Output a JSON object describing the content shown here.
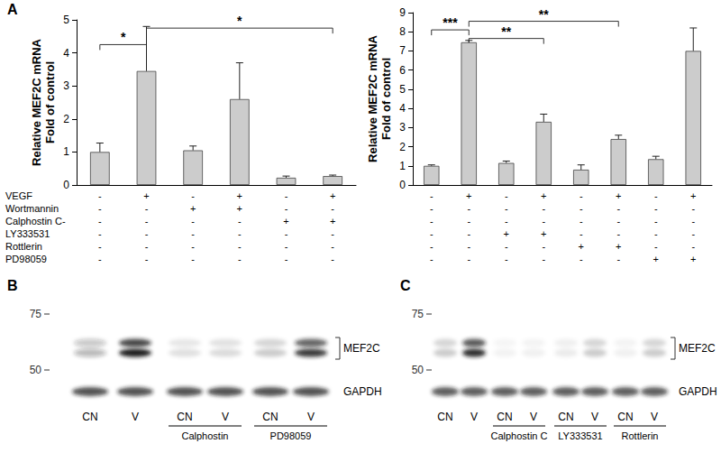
{
  "chart_data": [
    {
      "type": "bar",
      "ylabel": "Relative MEF2C mRNA\nFold of control",
      "categories": [
        null,
        null,
        null,
        null,
        null,
        null
      ],
      "values": [
        1.0,
        3.45,
        1.05,
        2.6,
        0.22,
        0.27
      ],
      "errors": [
        0.27,
        1.35,
        0.13,
        1.1,
        0.05,
        0.03
      ],
      "color": "#cccccc",
      "ylim": [
        0,
        5
      ],
      "yticks": [
        0,
        1,
        2,
        3,
        4,
        5
      ],
      "grid": false,
      "treatment_signs": [
        [
          "-",
          "+",
          "-",
          "+",
          "-",
          "+"
        ],
        [
          "-",
          "-",
          "+",
          "+",
          "-",
          "-"
        ],
        [
          "-",
          "-",
          "-",
          "-",
          "+",
          "+"
        ],
        [
          "-",
          "-",
          "-",
          "-",
          "-",
          "-"
        ],
        [
          "-",
          "-",
          "-",
          "-",
          "-",
          "-"
        ],
        [
          "-",
          "-",
          "-",
          "-",
          "-",
          "-"
        ]
      ],
      "annotations": [
        {
          "from": 0,
          "to": 1,
          "label": "*"
        },
        {
          "from": 1,
          "to": 5,
          "label": "*"
        }
      ]
    },
    {
      "type": "bar",
      "ylabel": "Relative MEF2C mRNA\nFold of control",
      "categories": [
        null,
        null,
        null,
        null,
        null,
        null,
        null,
        null
      ],
      "values": [
        1.0,
        7.45,
        1.15,
        3.3,
        0.8,
        2.4,
        1.35,
        7.0
      ],
      "errors": [
        0.05,
        0.1,
        0.1,
        0.4,
        0.25,
        0.2,
        0.15,
        1.2
      ],
      "color": "#cccccc",
      "ylim": [
        0,
        9
      ],
      "yticks": [
        0,
        1,
        2,
        3,
        4,
        5,
        6,
        7,
        8,
        9
      ],
      "grid": false,
      "treatment_signs": [
        [
          "-",
          "+",
          "-",
          "+",
          "-",
          "+",
          "-",
          "+"
        ],
        [
          "-",
          "-",
          "-",
          "-",
          "-",
          "-",
          "-",
          "-"
        ],
        [
          "-",
          "-",
          "-",
          "-",
          "-",
          "-",
          "-",
          "-"
        ],
        [
          "-",
          "-",
          "+",
          "+",
          "-",
          "-",
          "-",
          "-"
        ],
        [
          "-",
          "-",
          "-",
          "-",
          "+",
          "+",
          "-",
          "-"
        ],
        [
          "-",
          "-",
          "-",
          "-",
          "-",
          "-",
          "+",
          "+"
        ]
      ],
      "annotations": [
        {
          "from": 1,
          "to": 3,
          "label": "**"
        },
        {
          "from": 0,
          "to": 1,
          "label": "***"
        },
        {
          "from": 1,
          "to": 5,
          "label": "**"
        }
      ]
    }
  ],
  "treatment_rows": [
    "VEGF",
    "Wortmannin",
    "Calphostin C-",
    "LY333531",
    "Rottlerin",
    "PD98059"
  ],
  "panels": [
    "A",
    "B",
    "C"
  ],
  "blots": [
    {
      "markers": [
        75,
        50
      ],
      "lanes": [
        "CN",
        "V",
        "CN",
        "V",
        "CN",
        "V"
      ],
      "groups": [
        {
          "label": "Calphostin",
          "lanes": [
            2,
            3
          ]
        },
        {
          "label": "PD98059",
          "lanes": [
            4,
            5
          ]
        }
      ],
      "bands": [
        {
          "label": "MEF2C",
          "intensity": [
            0.3,
            1.0,
            0.12,
            0.14,
            0.2,
            0.85
          ]
        },
        {
          "label": "GAPDH",
          "intensity": [
            0.75,
            0.75,
            0.75,
            0.75,
            0.75,
            0.75
          ]
        }
      ]
    },
    {
      "markers": [
        75,
        50
      ],
      "lanes": [
        "CN",
        "V",
        "CN",
        "V",
        "CN",
        "V",
        "CN",
        "V"
      ],
      "groups": [
        {
          "label": "Calphostin C",
          "lanes": [
            2,
            3
          ]
        },
        {
          "label": "LY333531",
          "lanes": [
            4,
            5
          ]
        },
        {
          "label": "Rottlerin",
          "lanes": [
            6,
            7
          ]
        }
      ],
      "bands": [
        {
          "label": "MEF2C",
          "intensity": [
            0.2,
            0.9,
            0.05,
            0.06,
            0.08,
            0.2,
            0.06,
            0.2
          ]
        },
        {
          "label": "GAPDH",
          "intensity": [
            0.7,
            0.7,
            0.7,
            0.7,
            0.7,
            0.7,
            0.7,
            0.7
          ]
        }
      ]
    }
  ]
}
